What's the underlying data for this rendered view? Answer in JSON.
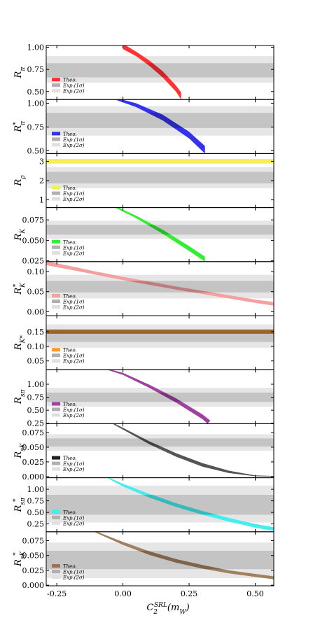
{
  "chart_data": {
    "type": "stacked-band-panels",
    "x_axis": {
      "label_main": "C",
      "label_sub": "2",
      "label_sup": "SRL",
      "label_arg": "(m",
      "label_arg_sub": "W",
      "label_close": ")",
      "range": [
        -0.29,
        0.57
      ],
      "ticks": [
        -0.25,
        0.0,
        0.25,
        0.5
      ],
      "tick_labels": [
        "-0.25",
        "0.00",
        "0.25",
        "0.50"
      ]
    },
    "legend_labels": [
      "Theo.",
      "Exp.(1σ)",
      "Exp.(2σ)"
    ],
    "panels": [
      {
        "ylabel_main": "R",
        "ylabel_sub": "π",
        "ylabel_star": "",
        "ylim": [
          0.41,
          1.02
        ],
        "ticks": [
          0.5,
          0.75,
          1.0
        ],
        "tick_labels": [
          "0.50",
          "0.75",
          "1.00"
        ],
        "exp_1sigma": [
          0.66,
          0.82
        ],
        "exp_2sigma": [
          0.6,
          0.9
        ],
        "theo_color": "#ff3333",
        "legend_swatch_color": "#ff3333",
        "theo_low": [
          [
            0.0,
            0.98
          ],
          [
            0.05,
            0.9
          ],
          [
            0.1,
            0.79
          ],
          [
            0.15,
            0.66
          ],
          [
            0.2,
            0.5
          ],
          [
            0.22,
            0.41
          ]
        ],
        "theo_high": [
          [
            0.0,
            1.04
          ],
          [
            0.05,
            0.95
          ],
          [
            0.1,
            0.85
          ],
          [
            0.15,
            0.73
          ],
          [
            0.2,
            0.57
          ],
          [
            0.22,
            0.49
          ]
        ]
      },
      {
        "ylabel_main": "R",
        "ylabel_sub": "π",
        "ylabel_star": "*",
        "ylim": [
          0.47,
          1.04
        ],
        "ticks": [
          0.5,
          0.75,
          1.0
        ],
        "tick_labels": [
          "0.50",
          "0.75",
          "1.00"
        ],
        "exp_1sigma": [
          0.74,
          0.9
        ],
        "exp_2sigma": [
          0.66,
          0.97
        ],
        "theo_color": "#3333ee",
        "legend_swatch_color": "#3333ee",
        "theo_low": [
          [
            -0.03,
            1.04
          ],
          [
            0.05,
            0.96
          ],
          [
            0.15,
            0.82
          ],
          [
            0.25,
            0.63
          ],
          [
            0.31,
            0.47
          ]
        ],
        "theo_high": [
          [
            -0.03,
            1.06
          ],
          [
            0.05,
            1.0
          ],
          [
            0.15,
            0.88
          ],
          [
            0.25,
            0.7
          ],
          [
            0.31,
            0.55
          ]
        ]
      },
      {
        "ylabel_main": "R",
        "ylabel_sub": "ρ",
        "ylabel_star": "",
        "ylim": [
          0.6,
          3.4
        ],
        "ticks": [
          1,
          2,
          3
        ],
        "tick_labels": [
          "1",
          "2",
          "3"
        ],
        "exp_1sigma": [
          1.85,
          2.45
        ],
        "exp_2sigma": [
          1.6,
          2.7
        ],
        "theo_color": "#f5f05a",
        "legend_swatch_color": "#f0f050",
        "theo_low": [
          [
            -0.29,
            2.88
          ],
          [
            0.57,
            2.88
          ]
        ],
        "theo_high": [
          [
            -0.29,
            3.12
          ],
          [
            0.57,
            3.12
          ]
        ]
      },
      {
        "ylabel_main": "R",
        "ylabel_sub": "K",
        "ylabel_star": "",
        "ylim": [
          0.024,
          0.09
        ],
        "ticks": [
          0.025,
          0.05,
          0.075
        ],
        "tick_labels": [
          "0.025",
          "0.050",
          "0.075"
        ],
        "exp_1sigma": [
          0.057,
          0.069
        ],
        "exp_2sigma": [
          0.052,
          0.074
        ],
        "theo_color": "#33ee33",
        "legend_swatch_color": "#33ee33",
        "theo_low": [
          [
            -0.03,
            0.09
          ],
          [
            0.05,
            0.077
          ],
          [
            0.15,
            0.058
          ],
          [
            0.25,
            0.037
          ],
          [
            0.31,
            0.024
          ]
        ],
        "theo_high": [
          [
            -0.03,
            0.092
          ],
          [
            0.05,
            0.08
          ],
          [
            0.15,
            0.063
          ],
          [
            0.25,
            0.043
          ],
          [
            0.31,
            0.03
          ]
        ]
      },
      {
        "ylabel_main": "R",
        "ylabel_sub": "K",
        "ylabel_star": "*",
        "ylim": [
          -0.01,
          0.125
        ],
        "ticks": [
          0.0,
          0.05,
          0.1
        ],
        "tick_labels": [
          "0.00",
          "0.05",
          "0.10"
        ],
        "exp_1sigma": [
          0.048,
          0.077
        ],
        "exp_2sigma": [
          0.033,
          0.092
        ],
        "theo_color": "#f4a0a0",
        "legend_swatch_color": "#f4a0a0",
        "theo_low": [
          [
            -0.29,
            0.116
          ],
          [
            -0.2,
            0.105
          ],
          [
            -0.1,
            0.092
          ],
          [
            0.0,
            0.079
          ],
          [
            0.1,
            0.067
          ],
          [
            0.2,
            0.055
          ],
          [
            0.3,
            0.044
          ],
          [
            0.4,
            0.033
          ],
          [
            0.5,
            0.022
          ],
          [
            0.57,
            0.015
          ]
        ],
        "theo_high": [
          [
            -0.29,
            0.126
          ],
          [
            -0.2,
            0.114
          ],
          [
            -0.1,
            0.1
          ],
          [
            0.0,
            0.087
          ],
          [
            0.1,
            0.075
          ],
          [
            0.2,
            0.063
          ],
          [
            0.3,
            0.052
          ],
          [
            0.4,
            0.041
          ],
          [
            0.5,
            0.03
          ],
          [
            0.57,
            0.024
          ]
        ]
      },
      {
        "ylabel_main": "R",
        "ylabel_sub": "K*",
        "ylabel_star": "",
        "ylim": [
          0.02,
          0.205
        ],
        "ticks": [
          0.05,
          0.1,
          0.15
        ],
        "tick_labels": [
          "0.05",
          "0.10",
          "0.15"
        ],
        "exp_1sigma": [
          0.115,
          0.155
        ],
        "exp_2sigma": [
          0.095,
          0.175
        ],
        "theo_color": "#c08040",
        "legend_swatch_color": "#ff9933",
        "theo_low": [
          [
            -0.29,
            0.143
          ],
          [
            0.57,
            0.143
          ]
        ],
        "theo_high": [
          [
            -0.29,
            0.158
          ],
          [
            0.57,
            0.158
          ]
        ]
      },
      {
        "ylabel_main": "R",
        "ylabel_sub": "sπ",
        "ylabel_star": "",
        "ylim": [
          0.24,
          1.28
        ],
        "ticks": [
          0.25,
          0.5,
          0.75,
          1.0
        ],
        "tick_labels": [
          "0.25",
          "0.50",
          "0.75",
          "1.00"
        ],
        "exp_1sigma": [
          0.66,
          0.84
        ],
        "exp_2sigma": [
          0.57,
          0.93
        ],
        "theo_color": "#a040a0",
        "legend_swatch_color": "#a040a0",
        "theo_low": [
          [
            -0.06,
            1.28
          ],
          [
            0.0,
            1.18
          ],
          [
            0.1,
            0.93
          ],
          [
            0.2,
            0.65
          ],
          [
            0.3,
            0.33
          ],
          [
            0.32,
            0.24
          ]
        ],
        "theo_high": [
          [
            -0.06,
            1.3
          ],
          [
            0.0,
            1.22
          ],
          [
            0.1,
            0.99
          ],
          [
            0.2,
            0.73
          ],
          [
            0.3,
            0.42
          ],
          [
            0.33,
            0.3
          ]
        ]
      },
      {
        "ylabel_main": "R",
        "ylabel_sub": "sK",
        "ylabel_star": "",
        "ylim": [
          -0.002,
          0.09
        ],
        "ticks": [
          0.0,
          0.025,
          0.05,
          0.075
        ],
        "tick_labels": [
          "0.000",
          "0.025",
          "0.050",
          "0.075"
        ],
        "exp_1sigma": [
          0.051,
          0.065
        ],
        "exp_2sigma": [
          0.044,
          0.072
        ],
        "theo_color": "#555555",
        "legend_swatch_color": "#222222",
        "theo_low": [
          [
            -0.04,
            0.09
          ],
          [
            0.0,
            0.08
          ],
          [
            0.1,
            0.055
          ],
          [
            0.2,
            0.034
          ],
          [
            0.3,
            0.017
          ],
          [
            0.4,
            0.006
          ],
          [
            0.5,
            0.0005
          ],
          [
            0.57,
            0.0
          ]
        ],
        "theo_high": [
          [
            -0.04,
            0.092
          ],
          [
            0.0,
            0.083
          ],
          [
            0.1,
            0.06
          ],
          [
            0.2,
            0.04
          ],
          [
            0.3,
            0.023
          ],
          [
            0.4,
            0.01
          ],
          [
            0.5,
            0.002
          ],
          [
            0.57,
            0.001
          ]
        ]
      },
      {
        "ylabel_main": "R",
        "ylabel_sub": "sπ",
        "ylabel_star": "*",
        "ylim": [
          0.08,
          1.25
        ],
        "ticks": [
          0.25,
          0.5,
          0.75,
          1.0
        ],
        "tick_labels": [
          "0.25",
          "0.50",
          "0.75",
          "1.00"
        ],
        "exp_1sigma": [
          0.45,
          0.88
        ],
        "exp_2sigma": [
          0.28,
          1.08
        ],
        "theo_color": "#44eeee",
        "legend_swatch_color": "#44eeee",
        "theo_low": [
          [
            -0.06,
            1.25
          ],
          [
            0.0,
            1.06
          ],
          [
            0.1,
            0.82
          ],
          [
            0.2,
            0.62
          ],
          [
            0.3,
            0.45
          ],
          [
            0.4,
            0.3
          ],
          [
            0.5,
            0.17
          ],
          [
            0.57,
            0.1
          ]
        ],
        "theo_high": [
          [
            -0.06,
            1.27
          ],
          [
            0.0,
            1.12
          ],
          [
            0.1,
            0.9
          ],
          [
            0.2,
            0.7
          ],
          [
            0.3,
            0.53
          ],
          [
            0.4,
            0.38
          ],
          [
            0.5,
            0.25
          ],
          [
            0.57,
            0.18
          ]
        ]
      },
      {
        "ylabel_main": "R",
        "ylabel_sub": "sK",
        "ylabel_star": "*",
        "ylim": [
          -0.001,
          0.09
        ],
        "ticks": [
          0.0,
          0.025,
          0.05,
          0.075
        ],
        "tick_labels": [
          "0.000",
          "0.025",
          "0.050",
          "0.075"
        ],
        "exp_1sigma": [
          0.027,
          0.058
        ],
        "exp_2sigma": [
          0.012,
          0.072
        ],
        "theo_color": "#a08060",
        "legend_swatch_color": "#a07050",
        "theo_low": [
          [
            -0.11,
            0.09
          ],
          [
            0.0,
            0.068
          ],
          [
            0.1,
            0.051
          ],
          [
            0.2,
            0.038
          ],
          [
            0.3,
            0.028
          ],
          [
            0.4,
            0.02
          ],
          [
            0.5,
            0.014
          ],
          [
            0.57,
            0.01
          ]
        ],
        "theo_high": [
          [
            -0.11,
            0.092
          ],
          [
            0.0,
            0.073
          ],
          [
            0.1,
            0.057
          ],
          [
            0.2,
            0.044
          ],
          [
            0.3,
            0.034
          ],
          [
            0.4,
            0.025
          ],
          [
            0.5,
            0.019
          ],
          [
            0.57,
            0.015
          ]
        ]
      }
    ]
  },
  "colors": {
    "exp_1sigma": "#c4c4c4",
    "exp_2sigma": "#e6e6e6",
    "overlap_shade": "rgba(0,0,0,0.22)",
    "frame": "#000000"
  }
}
